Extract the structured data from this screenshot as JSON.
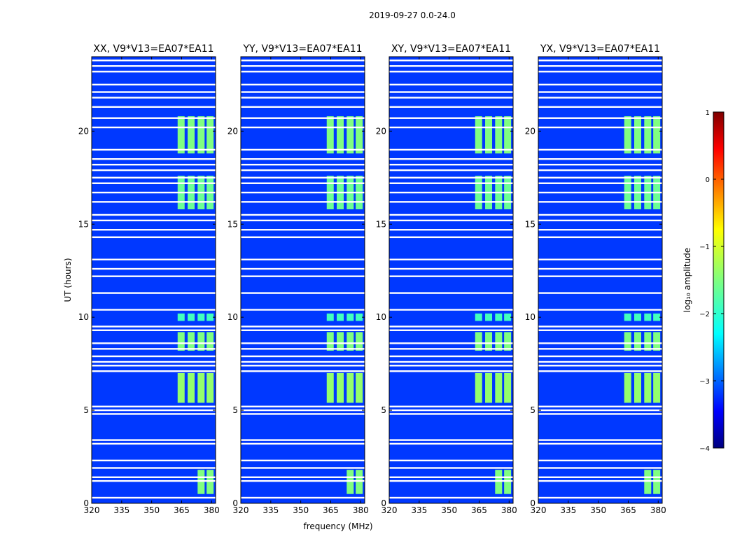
{
  "chart_data": {
    "type": "heatmap",
    "suptitle": "2019-09-27 0.0-24.0",
    "xlabel": "frequency (MHz)",
    "ylabel": "UT (hours)",
    "xlim": [
      320,
      382
    ],
    "ylim": [
      0,
      24
    ],
    "x_ticks": [
      320,
      335,
      350,
      365,
      380
    ],
    "y_ticks": [
      0,
      5,
      10,
      15,
      20
    ],
    "panels": [
      {
        "title": "XX, V9*V13=EA07*EA11",
        "polarization": "XX"
      },
      {
        "title": "YY, V9*V13=EA07*EA11",
        "polarization": "YY"
      },
      {
        "title": "XY, V9*V13=EA07*EA11",
        "polarization": "XY"
      },
      {
        "title": "YX, V9*V13=EA07*EA11",
        "polarization": "YX"
      }
    ],
    "colorbar": {
      "label": "log₁₀ amplitude",
      "range": [
        -4,
        1
      ],
      "ticks": [
        1,
        0,
        -1,
        -2,
        -3,
        -4
      ],
      "tick_labels": [
        "1",
        "0",
        "−1",
        "−2",
        "−3",
        "−4"
      ],
      "colormap": "jet"
    },
    "background_level": -3.1,
    "rfi_bands_mhz": [
      [
        363,
        366.5
      ],
      [
        368,
        371.5
      ],
      [
        373,
        376.5
      ],
      [
        377.5,
        381
      ]
    ],
    "rfi_time_blocks_ut": [
      {
        "start": 0.5,
        "end": 1.8,
        "level": -1.5,
        "bands": [
          2,
          3
        ]
      },
      {
        "start": 5.4,
        "end": 7.0,
        "level": -1.4,
        "bands": [
          0,
          1,
          2,
          3
        ]
      },
      {
        "start": 8.2,
        "end": 9.2,
        "level": -1.5,
        "bands": [
          0,
          1,
          2,
          3
        ]
      },
      {
        "start": 9.8,
        "end": 10.2,
        "level": -1.8,
        "bands": [
          0,
          1,
          2,
          3
        ]
      },
      {
        "start": 15.8,
        "end": 17.6,
        "level": -1.6,
        "bands": [
          0,
          1,
          2,
          3
        ]
      },
      {
        "start": 18.8,
        "end": 20.8,
        "level": -1.5,
        "bands": [
          0,
          1,
          2,
          3
        ]
      }
    ],
    "flagged_rows_ut": [
      0.3,
      1.2,
      1.4,
      1.9,
      2.3,
      3.2,
      3.4,
      4.8,
      5.0,
      5.2,
      7.1,
      7.4,
      7.6,
      7.9,
      8.3,
      8.6,
      9.3,
      9.5,
      10.4,
      11.3,
      12.2,
      12.6,
      13.1,
      14.3,
      14.7,
      15.2,
      15.5,
      16.2,
      16.7,
      17.2,
      17.5,
      17.9,
      18.2,
      18.5,
      19.0,
      20.2,
      20.7,
      21.3,
      21.8,
      22.1,
      22.5,
      23.2,
      23.5,
      23.8
    ]
  }
}
